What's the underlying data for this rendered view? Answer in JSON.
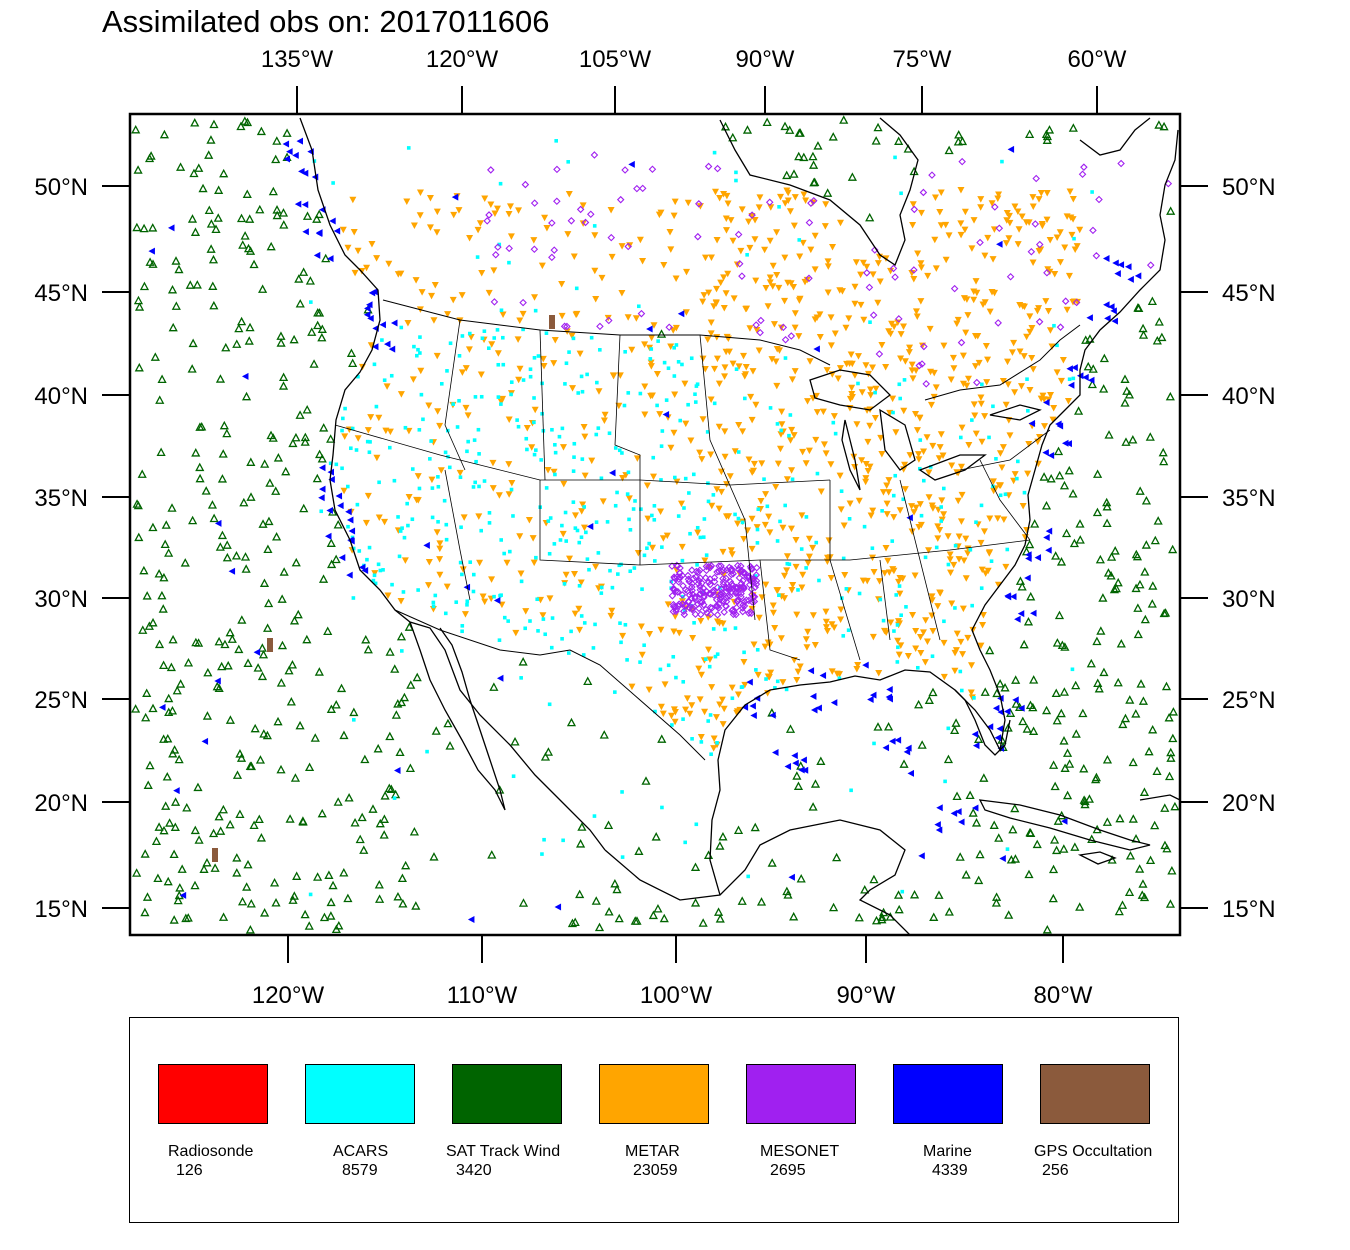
{
  "title": "Assimilated obs on: 2017011606",
  "map": {
    "top_lon_labels": [
      "135°W",
      "120°W",
      "105°W",
      "90°W",
      "75°W",
      "60°W"
    ],
    "bottom_lon_labels": [
      "120°W",
      "110°W",
      "100°W",
      "90°W",
      "80°W"
    ],
    "lat_labels": [
      "50°N",
      "45°N",
      "40°N",
      "35°N",
      "30°N",
      "25°N",
      "20°N",
      "15°N"
    ],
    "lon_range": [
      -128,
      -74
    ],
    "lat_range": [
      13.5,
      53.5
    ]
  },
  "legend": [
    {
      "label": "Radiosonde",
      "count": "126",
      "color": "#ff0000"
    },
    {
      "label": "ACARS",
      "count": "8579",
      "color": "#00ffff"
    },
    {
      "label": "SAT Track Wind",
      "count": "3420",
      "color": "#006400"
    },
    {
      "label": "METAR",
      "count": "23059",
      "color": "#ffa500"
    },
    {
      "label": "MESONET",
      "count": "2695",
      "color": "#a020f0"
    },
    {
      "label": "Marine",
      "count": "4339",
      "color": "#0000ff"
    },
    {
      "label": "GPS Occultation",
      "count": "256",
      "color": "#8b5a3c"
    }
  ]
}
